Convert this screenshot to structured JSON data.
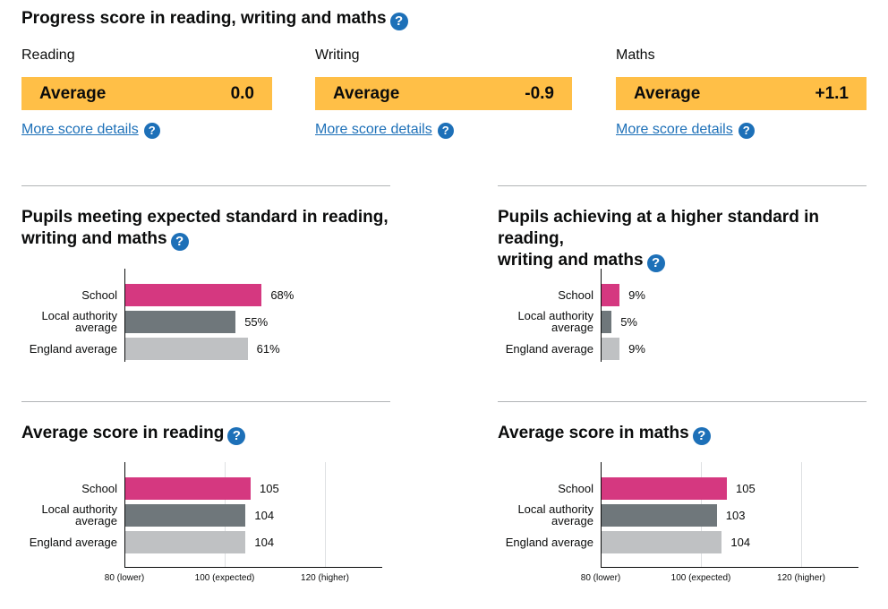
{
  "progress": {
    "title": "Progress score in reading, writing and maths",
    "items": [
      {
        "subject": "Reading",
        "band": "Average",
        "score": "0.0",
        "link": "More score details"
      },
      {
        "subject": "Writing",
        "band": "Average",
        "score": "-0.9",
        "link": "More score details"
      },
      {
        "subject": "Maths",
        "band": "Average",
        "score": "+1.1",
        "link": "More score details"
      }
    ],
    "band_color": "#ffbf47",
    "link_color": "#1d70b8"
  },
  "icons": {
    "help": "question-circle-icon",
    "help_glyph": "?"
  },
  "charts": {
    "expected": {
      "title_line1": "Pupils meeting expected standard in reading,",
      "title_line2": "writing and maths"
    },
    "higher": {
      "title_line1": "Pupils achieving at a higher standard in reading,",
      "title_line2": "writing and maths"
    },
    "reading": {
      "title": "Average score in reading"
    },
    "maths": {
      "title": "Average score in maths"
    },
    "row_labels": {
      "school": "School",
      "la_line1": "Local authority",
      "la_line2": "average",
      "england": "England average"
    },
    "colors": {
      "school": "#d53880",
      "la": "#6f777b",
      "england": "#bfc1c3"
    }
  },
  "chart_data": [
    {
      "type": "bar",
      "orientation": "horizontal",
      "title": "Pupils meeting expected standard in reading, writing and maths",
      "categories": [
        "School",
        "Local authority average",
        "England average"
      ],
      "values": [
        68,
        55,
        61
      ],
      "labels": [
        "68%",
        "55%",
        "61%"
      ],
      "xlim": [
        0,
        100
      ]
    },
    {
      "type": "bar",
      "orientation": "horizontal",
      "title": "Pupils achieving at a higher standard in reading, writing and maths",
      "categories": [
        "School",
        "Local authority average",
        "England average"
      ],
      "values": [
        9,
        5,
        9
      ],
      "labels": [
        "9%",
        "5%",
        "9%"
      ],
      "xlim": [
        0,
        100
      ]
    },
    {
      "type": "bar",
      "orientation": "horizontal",
      "title": "Average score in reading",
      "categories": [
        "School",
        "Local authority average",
        "England average"
      ],
      "values": [
        105,
        104,
        104
      ],
      "labels": [
        "105",
        "104",
        "104"
      ],
      "xlim": [
        80,
        130
      ],
      "ticks": [
        80,
        100,
        120
      ],
      "tick_labels": [
        "80 (lower)",
        "100 (expected)",
        "120 (higher)"
      ]
    },
    {
      "type": "bar",
      "orientation": "horizontal",
      "title": "Average score in maths",
      "categories": [
        "School",
        "Local authority average",
        "England average"
      ],
      "values": [
        105,
        103,
        104
      ],
      "labels": [
        "105",
        "103",
        "104"
      ],
      "xlim": [
        80,
        130
      ],
      "ticks": [
        80,
        100,
        120
      ],
      "tick_labels": [
        "80 (lower)",
        "100 (expected)",
        "120 (higher)"
      ]
    }
  ]
}
